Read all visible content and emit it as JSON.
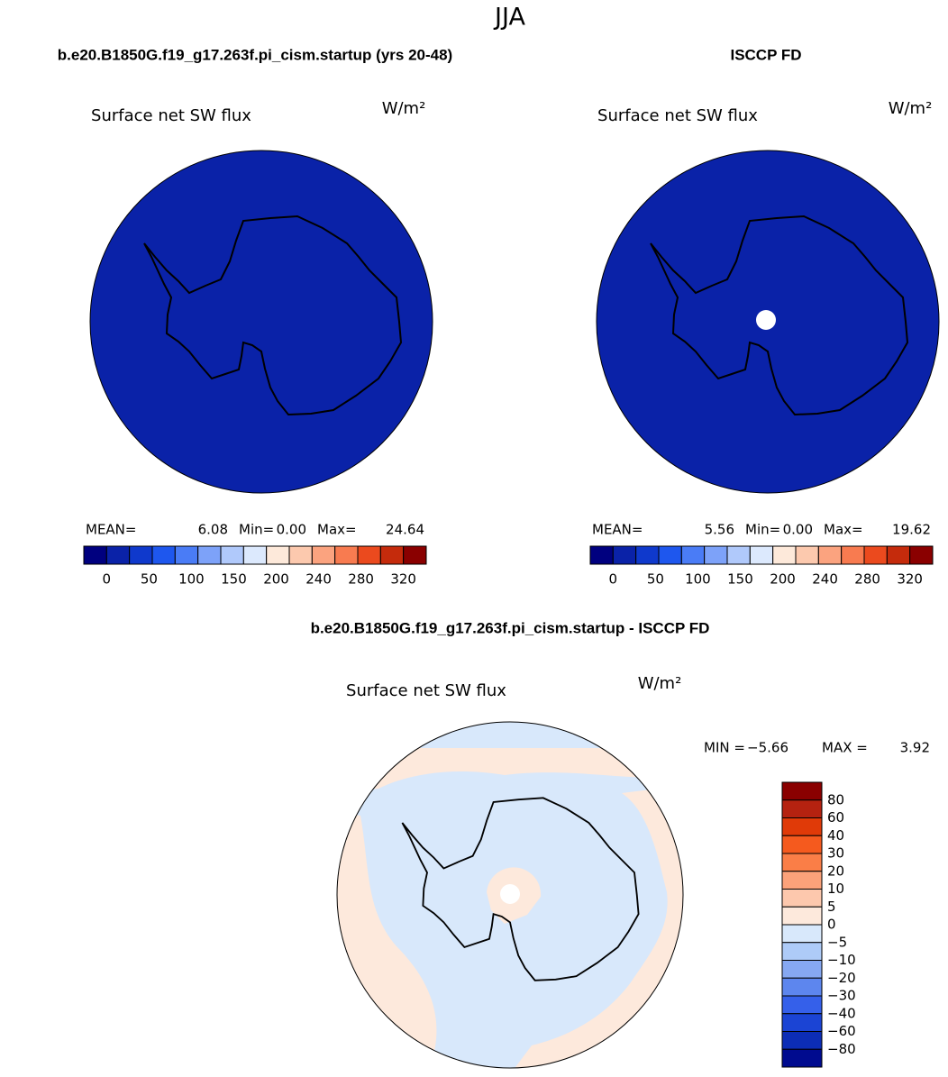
{
  "title": "JJA",
  "panels": [
    {
      "heading": "b.e20.B1850G.f19_g17.263f.pi_cism.startup (yrs 20-48)",
      "map_title": "Surface net SW flux",
      "units": "W/m²",
      "stats": [
        {
          "label": "MEAN=",
          "value": "6.08"
        },
        {
          "label": "Min=",
          "value": "0.00"
        },
        {
          "label": "Max=",
          "value": "24.64"
        }
      ],
      "colorbar": {
        "colors": [
          "#00007f",
          "#0a22a8",
          "#0f39cc",
          "#1e57ee",
          "#4a7cf6",
          "#7da2f9",
          "#b0c9fb",
          "#dce9fd",
          "#fde9da",
          "#fcc9ae",
          "#fba37f",
          "#f87b50",
          "#eb4a1e",
          "#c52b0c",
          "#8a0000"
        ],
        "labels": [
          "0",
          "50",
          "100",
          "150",
          "200",
          "240",
          "280",
          "320"
        ]
      }
    },
    {
      "heading": "ISCCP FD",
      "map_title": "Surface net SW flux",
      "units": "W/m²",
      "stats": [
        {
          "label": "MEAN=",
          "value": "5.56"
        },
        {
          "label": "Min=",
          "value": "0.00"
        },
        {
          "label": "Max=",
          "value": "19.62"
        }
      ],
      "colorbar": {
        "colors": [
          "#00007f",
          "#0a22a8",
          "#0f39cc",
          "#1e57ee",
          "#4a7cf6",
          "#7da2f9",
          "#b0c9fb",
          "#dce9fd",
          "#fde9da",
          "#fcc9ae",
          "#fba37f",
          "#f87b50",
          "#eb4a1e",
          "#c52b0c",
          "#8a0000"
        ],
        "labels": [
          "0",
          "50",
          "100",
          "150",
          "200",
          "240",
          "280",
          "320"
        ]
      }
    }
  ],
  "difference": {
    "heading": "b.e20.B1850G.f19_g17.263f.pi_cism.startup - ISCCP FD",
    "map_title": "Surface net SW flux",
    "units": "W/m²",
    "stats": [
      {
        "label": "MIN =",
        "value": "−5.66"
      },
      {
        "label": "MAX =",
        "value": "3.92"
      }
    ],
    "colorbar": {
      "colors": [
        "#8a0000",
        "#b52210",
        "#e03a08",
        "#f55a1e",
        "#fa7e47",
        "#fca27a",
        "#fdc8ad",
        "#fde9dc",
        "#d8e8fb",
        "#aecbf8",
        "#86a8f2",
        "#5d86ee",
        "#3560ea",
        "#1b44d4",
        "#0c2db6",
        "#000b8f"
      ],
      "labels": [
        "80",
        "60",
        "40",
        "30",
        "20",
        "10",
        "5",
        "0",
        "−5",
        "−10",
        "−20",
        "−30",
        "−40",
        "−60",
        "−80"
      ]
    }
  }
}
